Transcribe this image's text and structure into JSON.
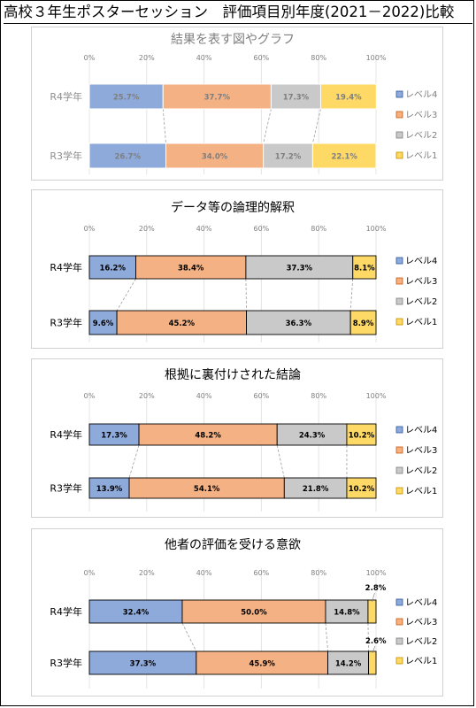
{
  "page_title": "高校３年生ポスターセッション　評価項目別年度(2021－2022)比較",
  "chart_data": [
    {
      "type": "bar",
      "orientation": "horizontal",
      "stacked": "100%",
      "title": "結果を表す図やグラフ",
      "categories": [
        "R4学年",
        "R3学年"
      ],
      "xticks": [
        "0%",
        "20%",
        "40%",
        "60%",
        "80%",
        "100%"
      ],
      "xlim": [
        0,
        100
      ],
      "legend_position": "right",
      "series": [
        {
          "name": "レベル4",
          "color": "#8eaadb",
          "values": [
            25.7,
            26.7
          ],
          "labels": [
            "25.7%",
            "26.7%"
          ]
        },
        {
          "name": "レベル3",
          "color": "#f4b183",
          "values": [
            37.7,
            34.0
          ],
          "labels": [
            "37.7%",
            "34.0%"
          ]
        },
        {
          "name": "レベル2",
          "color": "#c9c9c9",
          "values": [
            17.3,
            17.2
          ],
          "labels": [
            "17.3%",
            "17.2%"
          ]
        },
        {
          "name": "レベル1",
          "color": "#ffd966",
          "values": [
            19.4,
            22.1
          ],
          "labels": [
            "19.4%",
            "22.1%"
          ]
        }
      ]
    },
    {
      "type": "bar",
      "orientation": "horizontal",
      "stacked": "100%",
      "title": "データ等の論理的解釈",
      "categories": [
        "R4学年",
        "R3学年"
      ],
      "xticks": [
        "0%",
        "20%",
        "40%",
        "60%",
        "80%",
        "100%"
      ],
      "xlim": [
        0,
        100
      ],
      "legend_position": "right",
      "series": [
        {
          "name": "レベル4",
          "color": "#8eaadb",
          "values": [
            16.2,
            9.6
          ],
          "labels": [
            "16.2%",
            "9.6%"
          ]
        },
        {
          "name": "レベル3",
          "color": "#f4b183",
          "values": [
            38.4,
            45.2
          ],
          "labels": [
            "38.4%",
            "45.2%"
          ]
        },
        {
          "name": "レベル2",
          "color": "#c9c9c9",
          "values": [
            37.3,
            36.3
          ],
          "labels": [
            "37.3%",
            "36.3%"
          ]
        },
        {
          "name": "レベル1",
          "color": "#ffd966",
          "values": [
            8.1,
            8.9
          ],
          "labels": [
            "8.1%",
            "8.9%"
          ]
        }
      ]
    },
    {
      "type": "bar",
      "orientation": "horizontal",
      "stacked": "100%",
      "title": "根拠に裏付けされた結論",
      "categories": [
        "R4学年",
        "R3学年"
      ],
      "xticks": [
        "0%",
        "20%",
        "40%",
        "60%",
        "80%",
        "100%"
      ],
      "xlim": [
        0,
        100
      ],
      "legend_position": "right",
      "series": [
        {
          "name": "レベル4",
          "color": "#8eaadb",
          "values": [
            17.3,
            13.9
          ],
          "labels": [
            "17.3%",
            "13.9%"
          ]
        },
        {
          "name": "レベル3",
          "color": "#f4b183",
          "values": [
            48.2,
            54.1
          ],
          "labels": [
            "48.2%",
            "54.1%"
          ]
        },
        {
          "name": "レベル2",
          "color": "#c9c9c9",
          "values": [
            24.3,
            21.8
          ],
          "labels": [
            "24.3%",
            "21.8%"
          ]
        },
        {
          "name": "レベル1",
          "color": "#ffd966",
          "values": [
            10.2,
            10.2
          ],
          "labels": [
            "10.2%",
            "10.2%"
          ]
        }
      ]
    },
    {
      "type": "bar",
      "orientation": "horizontal",
      "stacked": "100%",
      "title": "他者の評価を受ける意欲",
      "categories": [
        "R4学年",
        "R3学年"
      ],
      "xticks": [
        "0%",
        "20%",
        "40%",
        "60%",
        "80%",
        "100%"
      ],
      "xlim": [
        0,
        100
      ],
      "legend_position": "right",
      "series": [
        {
          "name": "レベル4",
          "color": "#8eaadb",
          "values": [
            32.4,
            37.3
          ],
          "labels": [
            "32.4%",
            "37.3%"
          ]
        },
        {
          "name": "レベル3",
          "color": "#f4b183",
          "values": [
            50.0,
            45.9
          ],
          "labels": [
            "50.0%",
            "45.9%"
          ]
        },
        {
          "name": "レベル2",
          "color": "#c9c9c9",
          "values": [
            14.8,
            14.2
          ],
          "labels": [
            "14.8%",
            "14.2%"
          ]
        },
        {
          "name": "レベル1",
          "color": "#ffd966",
          "values": [
            2.8,
            2.6
          ],
          "labels": [
            "2.8%",
            "2.6%"
          ]
        }
      ]
    }
  ]
}
